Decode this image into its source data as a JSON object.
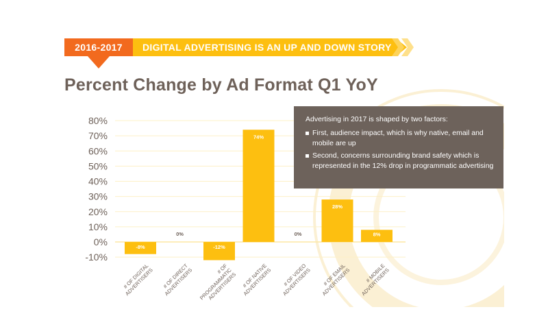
{
  "banner": {
    "year": "2016-2017",
    "headline": "DIGITAL ADVERTISING IS AN UP AND DOWN STORY"
  },
  "colors": {
    "orange": "#f26a1e",
    "yellow": "#fdbf10",
    "title": "#6e6159",
    "panel": "#6d625b"
  },
  "info": {
    "intro": "Advertising in 2017 is shaped by two factors:",
    "points": [
      "First, audience impact, which is why native, email and mobile are up",
      "Second, concerns surrounding brand safety which is represented in the 12% drop in programmatic advertising"
    ]
  },
  "chart_data": {
    "type": "bar",
    "title": "Percent Change by Ad Format Q1 YoY",
    "categories": [
      "# OF DIGITAL ADVERTISERS",
      "# OF DIRECT ADVERTISERS",
      "# OF PROGRAMMATIC ADVERTISERS",
      "# OF NATIVE ADVERTISERS",
      "# OF VIDEO ADVERTISERS",
      "# OF EMAIL ADVERTISERS",
      "# MOBILE ADVERTISERS"
    ],
    "category_lines": [
      [
        "# OF DIGITAL",
        "ADVERTISERS"
      ],
      [
        "# OF DIRECT",
        "ADVERTISERS"
      ],
      [
        "# OF",
        "PROGRAMMATIC",
        "ADVERTISERS"
      ],
      [
        "# OF NATIVE",
        "ADVERTISERS"
      ],
      [
        "# OF VIDEO",
        "ADVERTISERS"
      ],
      [
        "# OF EMAIL",
        "ADVERTISERS"
      ],
      [
        "# MOBILE",
        "ADVERTISERS"
      ]
    ],
    "values": [
      -8,
      0,
      -12,
      74,
      0,
      28,
      8
    ],
    "value_labels": [
      "-8%",
      "0%",
      "-12%",
      "74%",
      "0%",
      "28%",
      "8%"
    ],
    "yticks": [
      "80%",
      "70%",
      "60%",
      "50%",
      "40%",
      "30%",
      "20%",
      "10%",
      "0%",
      "-10%"
    ],
    "ytick_values": [
      80,
      70,
      60,
      50,
      40,
      30,
      20,
      10,
      0,
      -10
    ],
    "ylim": [
      -10,
      80
    ],
    "grid": true,
    "bar_color": "#fdbf10",
    "xlabel": "",
    "ylabel": ""
  }
}
